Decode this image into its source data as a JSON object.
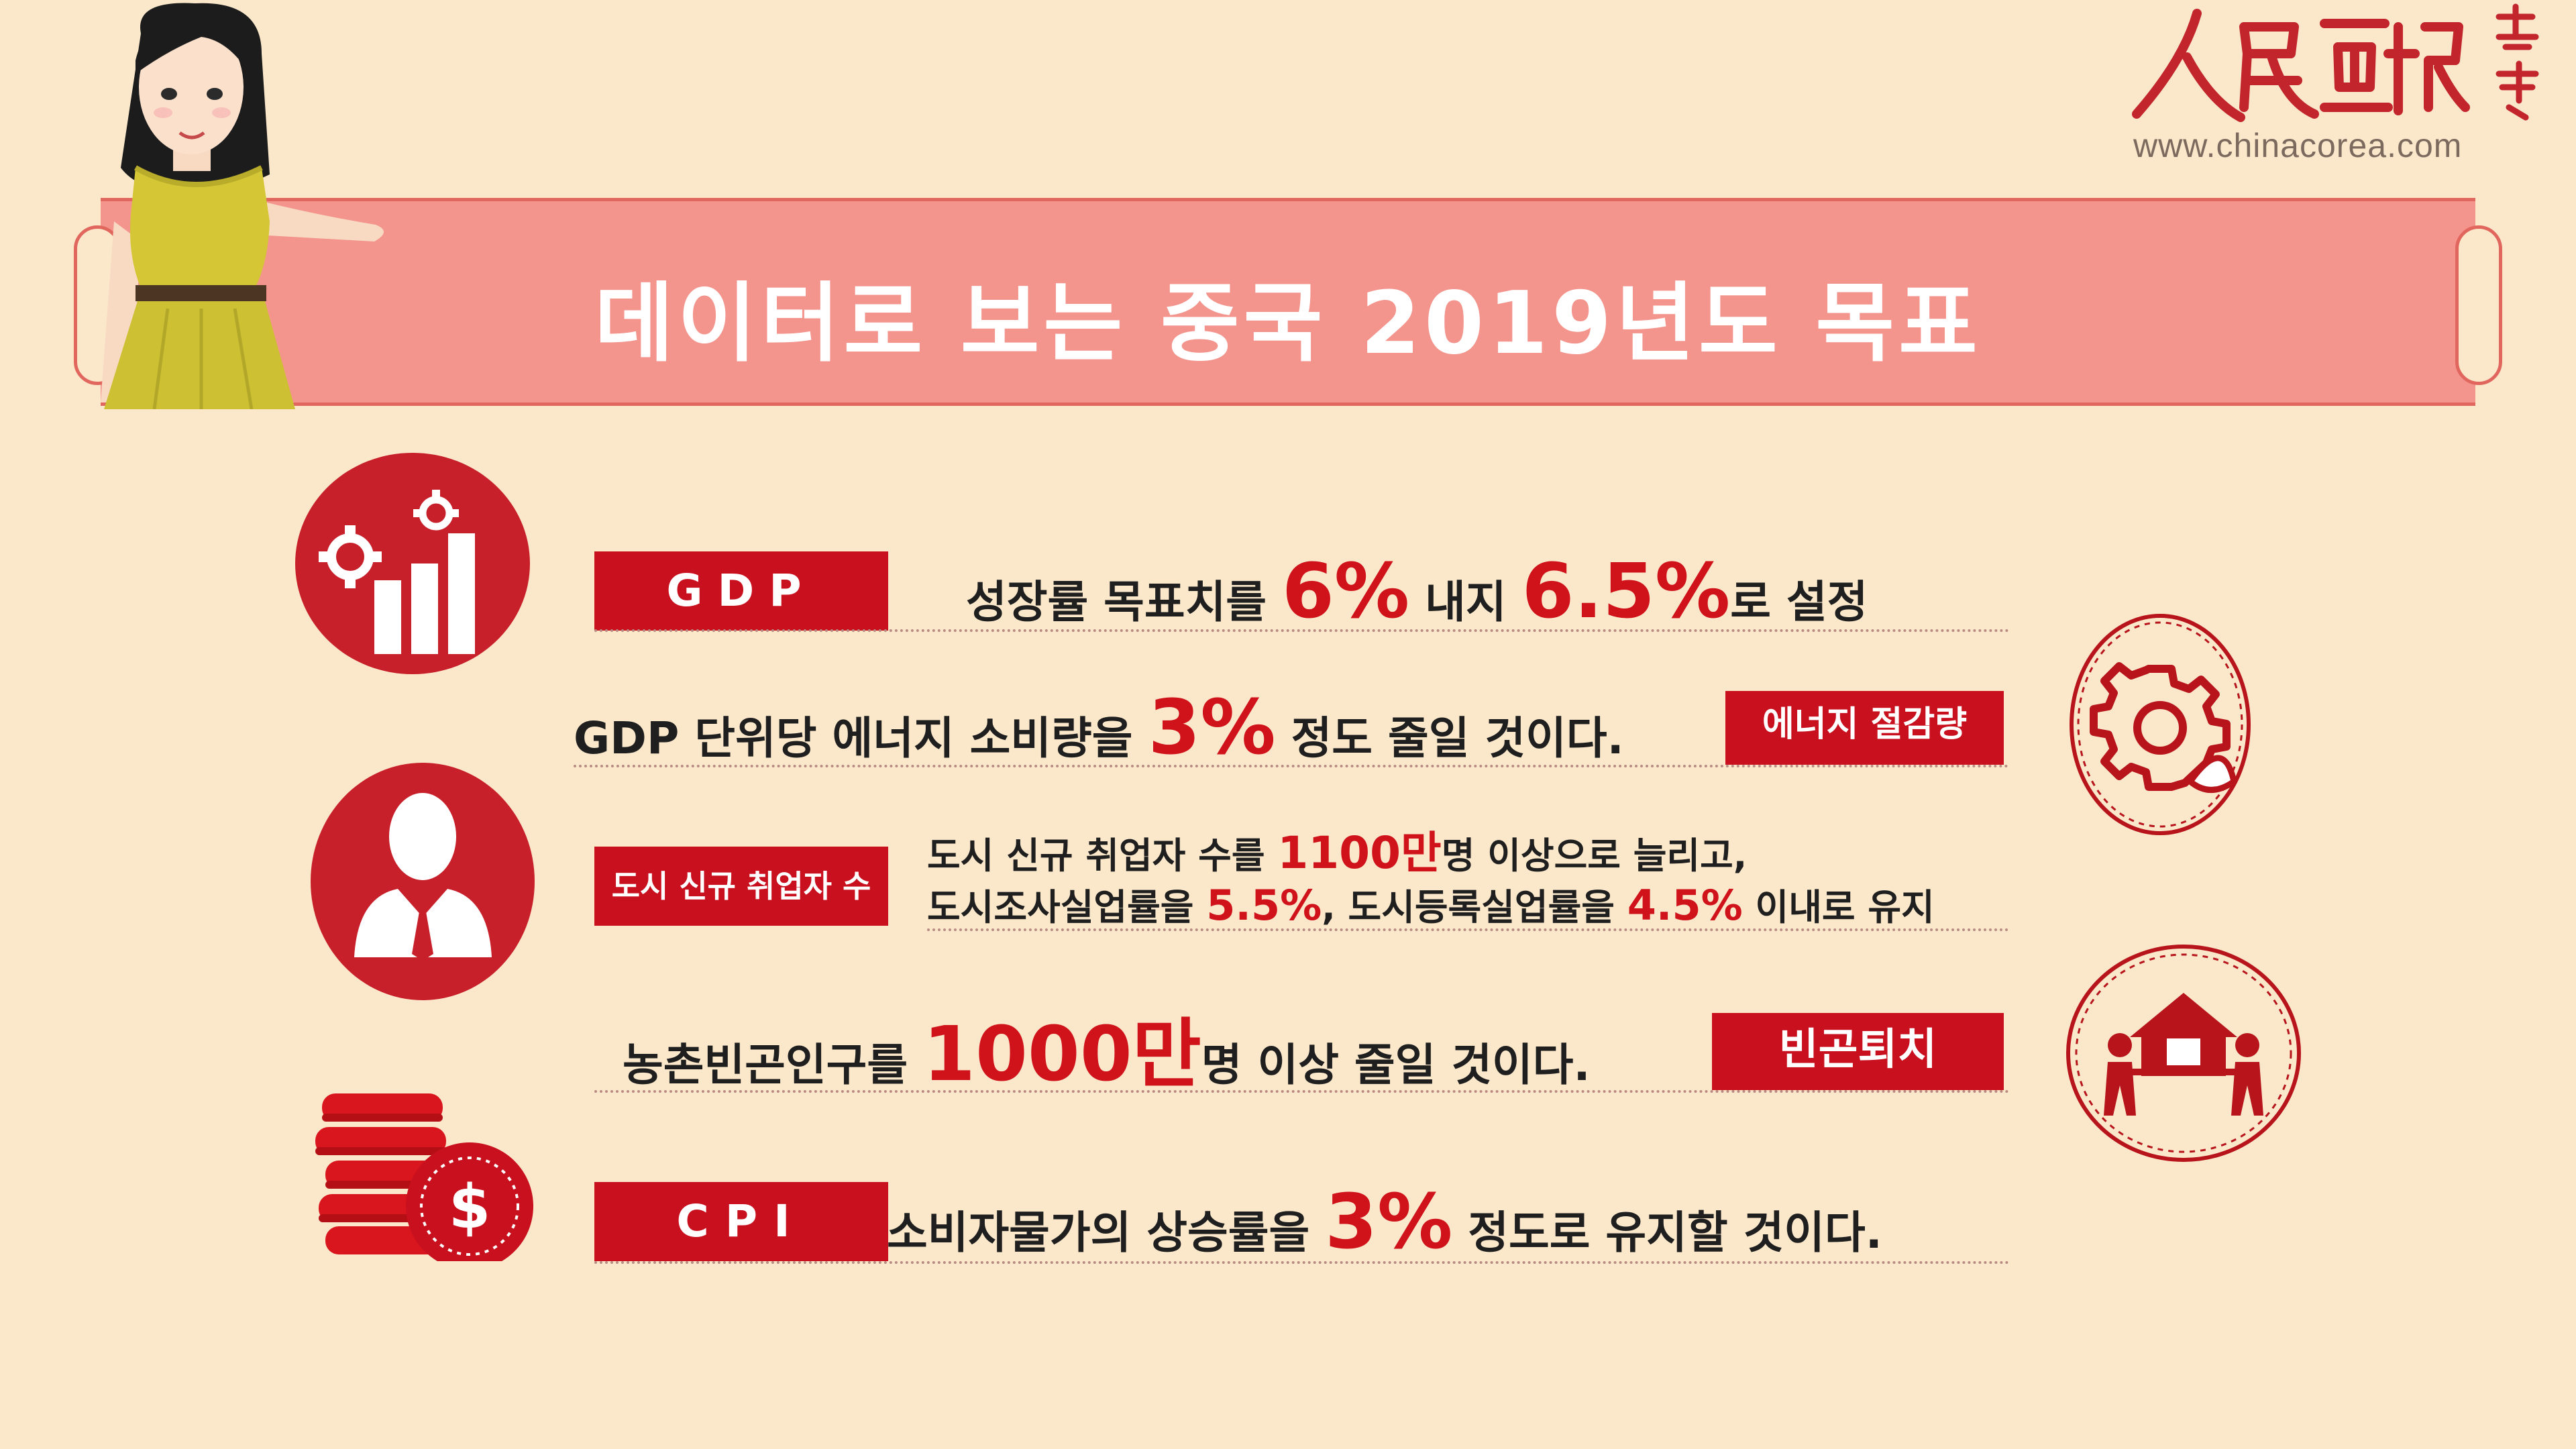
{
  "header": {
    "title": "데이터로 보는 중국 2019년도 목표",
    "logo_url": "www.chinacorea.com"
  },
  "rows": {
    "gdp": {
      "tag": "GDP",
      "text_before": "성장률 목표치를 ",
      "value1": "6%",
      "text_mid": " 내지 ",
      "value2": "6.5%",
      "text_after": "로 설정"
    },
    "energy": {
      "text_before": "GDP 단위당 에너지 소비량을 ",
      "value": "3%",
      "text_after": " 정도 줄일 것이다.",
      "tag": "에너지 절감량"
    },
    "employment": {
      "tag": "도시 신규 취업자 수",
      "line1_before": "도시 신규 취업자 수를 ",
      "line1_value": "1100만",
      "line1_after": "명 이상으로 늘리고,",
      "line2_before": "도시조사실업률을 ",
      "line2_value1": "5.5%",
      "line2_mid": ", 도시등록실업률을 ",
      "line2_value2": "4.5%",
      "line2_after": " 이내로 유지"
    },
    "poverty": {
      "text_before": "농촌빈곤인구를 ",
      "value": "1000만",
      "text_after": "명 이상 줄일 것이다.",
      "tag": "빈곤퇴치"
    },
    "cpi": {
      "tag": "CPI",
      "text_before": "소비자물가의 상승률을 ",
      "value": "3%",
      "text_after": " 정도로 유지할 것이다."
    }
  },
  "icons": {
    "gdp": "chart-gear-icon",
    "energy": "gear-leaf-icon",
    "employment": "businessman-icon",
    "poverty": "house-people-icon",
    "cpi": "coins-dollar-icon"
  },
  "colors": {
    "background": "#fbe8cb",
    "title_bar": "#f3958d",
    "accent_red": "#c8101e",
    "highlight": "#d0121b"
  }
}
